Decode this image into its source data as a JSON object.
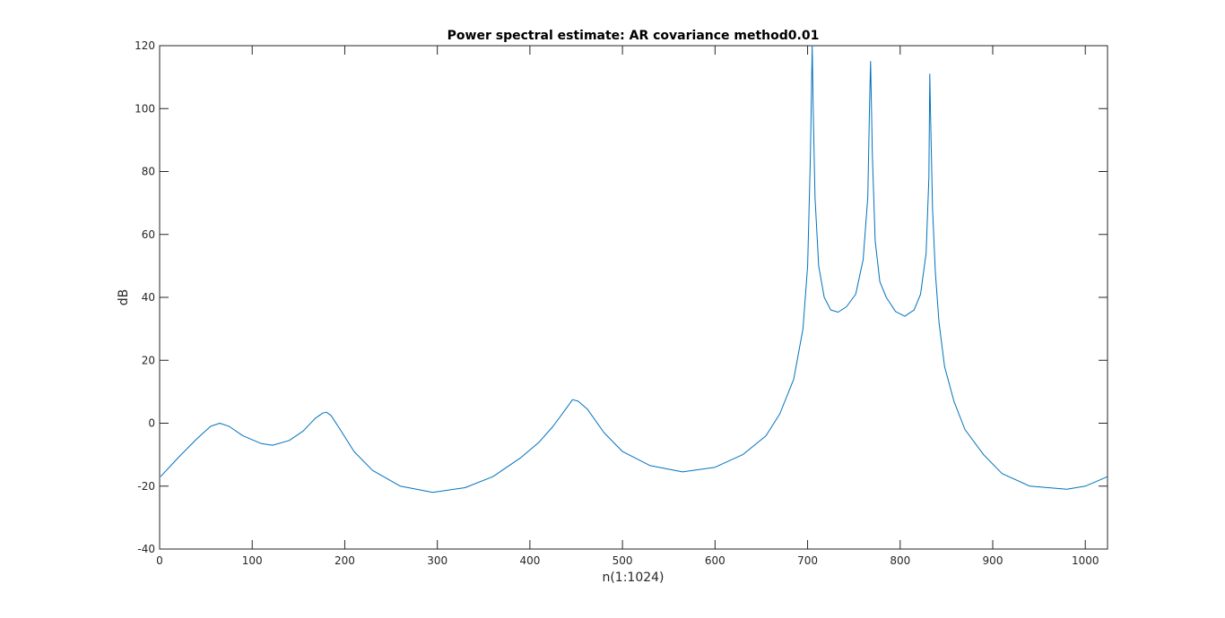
{
  "chart_data": {
    "type": "line",
    "title": "Power spectral estimate: AR covariance method0.01",
    "xlabel": "n(1:1024)",
    "ylabel": "dB",
    "xlim": [
      0,
      1024
    ],
    "ylim": [
      -40,
      120
    ],
    "xticks": [
      0,
      100,
      200,
      300,
      400,
      500,
      600,
      700,
      800,
      900,
      1000
    ],
    "yticks": [
      -40,
      -20,
      0,
      20,
      40,
      60,
      80,
      100,
      120
    ],
    "grid": false,
    "legend": "none",
    "series": [
      {
        "color": "#0072BD",
        "x": [
          1,
          20,
          40,
          55,
          65,
          75,
          90,
          110,
          122,
          140,
          155,
          168,
          176,
          180,
          185,
          195,
          210,
          230,
          260,
          295,
          330,
          360,
          390,
          410,
          425,
          440,
          446,
          452,
          462,
          480,
          500,
          530,
          565,
          600,
          630,
          655,
          670,
          685,
          695,
          700,
          703,
          705,
          706,
          708,
          712,
          718,
          725,
          733,
          742,
          752,
          760,
          765,
          767,
          768,
          770,
          773,
          778,
          785,
          795,
          805,
          815,
          822,
          828,
          831,
          832,
          833,
          835,
          838,
          842,
          848,
          858,
          870,
          890,
          910,
          940,
          980,
          1000,
          1024
        ],
        "y": [
          -17,
          -11,
          -5,
          -1,
          0,
          -1,
          -4,
          -6.5,
          -7,
          -5.5,
          -2.5,
          1.5,
          3.2,
          3.5,
          2.5,
          -2,
          -9,
          -15,
          -20,
          -22,
          -20.5,
          -17,
          -11,
          -6,
          -1,
          5,
          7.5,
          7,
          4.5,
          -3,
          -9,
          -13.5,
          -15.5,
          -14,
          -10,
          -4,
          3,
          14,
          30,
          50,
          85,
          120,
          100,
          72,
          50,
          40,
          36,
          35.3,
          37,
          41,
          52,
          72,
          102,
          115,
          85,
          58,
          45,
          40,
          35.5,
          34,
          36,
          41,
          54,
          78,
          111,
          96,
          68,
          48,
          32,
          18,
          7,
          -2,
          -10,
          -16,
          -20,
          -21,
          -20,
          -17
        ]
      }
    ]
  }
}
